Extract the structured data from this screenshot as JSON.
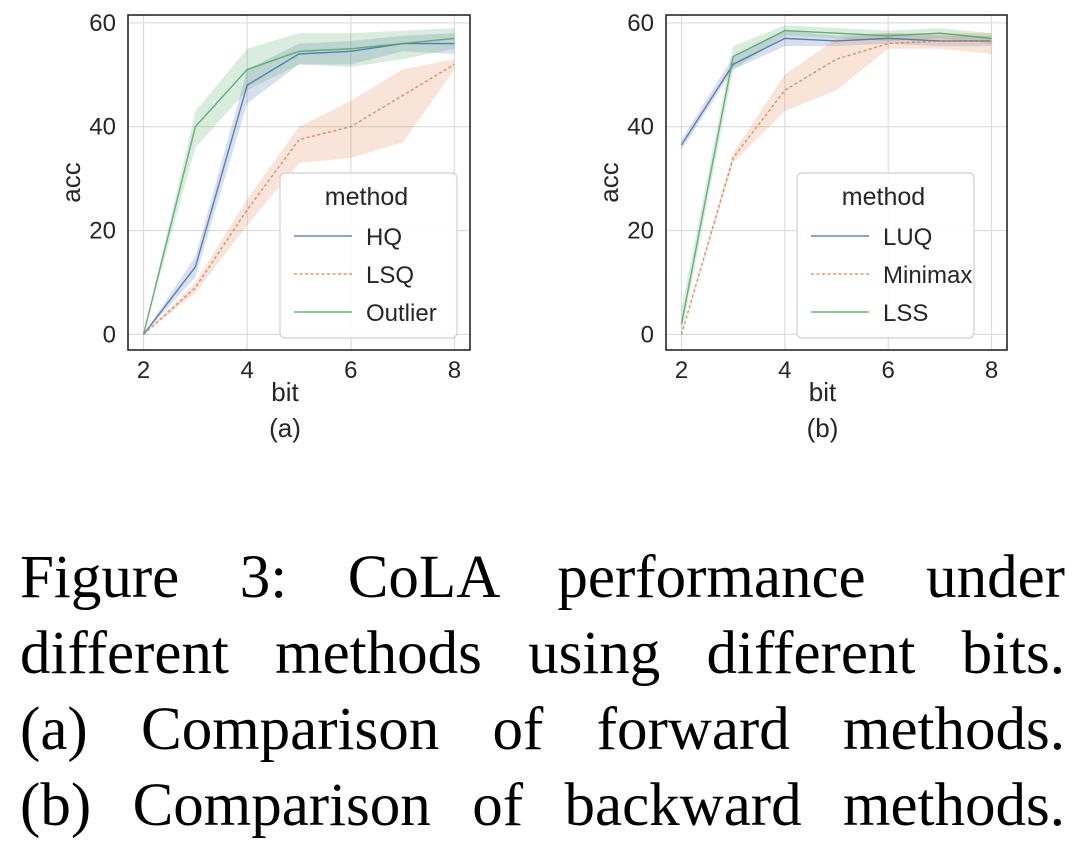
{
  "chart_data": [
    {
      "type": "line",
      "panel_label": "(a)",
      "xlabel": "bit",
      "ylabel": "acc",
      "xlim": [
        1.7,
        8.3
      ],
      "ylim": [
        -3,
        61.5
      ],
      "xticks": [
        2,
        4,
        6,
        8
      ],
      "yticks": [
        0,
        20,
        40,
        60
      ],
      "grid": true,
      "legend": {
        "title": "method",
        "placement": "lower-right"
      },
      "x": [
        2,
        3,
        4,
        5,
        6,
        7,
        8
      ],
      "series": [
        {
          "name": "HQ",
          "color": "#4c72b0",
          "dash": "solid",
          "values": [
            0,
            13,
            48,
            54,
            54.5,
            56,
            56
          ],
          "lower": [
            0,
            11,
            44.5,
            52,
            52,
            54.5,
            54
          ],
          "upper": [
            0,
            15,
            51,
            56,
            56.5,
            57.5,
            58
          ]
        },
        {
          "name": "LSQ",
          "color": "#dd8452",
          "dash": "dashed",
          "values": [
            0,
            9,
            24,
            37.5,
            40,
            46,
            52
          ],
          "lower": [
            0,
            8,
            21,
            33,
            34,
            37,
            51
          ],
          "upper": [
            0,
            10,
            26,
            40,
            45,
            51,
            53
          ]
        },
        {
          "name": "Outlier",
          "color": "#55a868",
          "dash": "solid",
          "values": [
            0,
            40,
            51,
            54.5,
            55,
            56,
            57
          ],
          "lower": [
            0,
            36,
            47,
            52,
            51.5,
            53,
            55
          ],
          "upper": [
            0,
            43,
            55,
            58,
            58,
            58.5,
            59
          ]
        }
      ]
    },
    {
      "type": "line",
      "panel_label": "(b)",
      "xlabel": "bit",
      "ylabel": "acc",
      "xlim": [
        1.7,
        8.3
      ],
      "ylim": [
        -3,
        61.5
      ],
      "xticks": [
        2,
        4,
        6,
        8
      ],
      "yticks": [
        0,
        20,
        40,
        60
      ],
      "grid": true,
      "legend": {
        "title": "method",
        "placement": "lower-right"
      },
      "x": [
        2,
        3,
        4,
        5,
        6,
        7,
        8
      ],
      "series": [
        {
          "name": "LUQ",
          "color": "#4c72b0",
          "dash": "solid",
          "values": [
            36.5,
            52,
            57,
            56.5,
            57,
            56.5,
            56.5
          ],
          "lower": [
            35.5,
            51,
            55.5,
            55.5,
            56,
            55.5,
            55.5
          ],
          "upper": [
            37.5,
            53.5,
            58.5,
            57.5,
            58,
            57.5,
            57.5
          ]
        },
        {
          "name": "Minimax",
          "color": "#dd8452",
          "dash": "dashed",
          "values": [
            0,
            34,
            47,
            53,
            56,
            56.5,
            56.5
          ],
          "lower": [
            0,
            33,
            43,
            47,
            55,
            55,
            54
          ],
          "upper": [
            0,
            35,
            50,
            57,
            58,
            58,
            58
          ]
        },
        {
          "name": "LSS",
          "color": "#55a868",
          "dash": "solid",
          "values": [
            2,
            53.5,
            58.5,
            58,
            57.5,
            58,
            57
          ],
          "lower": [
            0,
            51,
            57.5,
            57,
            56.5,
            57,
            56
          ],
          "upper": [
            5,
            55.5,
            59.5,
            59,
            58.5,
            59,
            58
          ]
        }
      ]
    }
  ],
  "caption": {
    "lines": [
      "Figure 3: CoLA performance under",
      "different methods using different bits.",
      "(a) Comparison of forward methods.",
      "(b) Comparison of backward methods."
    ]
  }
}
